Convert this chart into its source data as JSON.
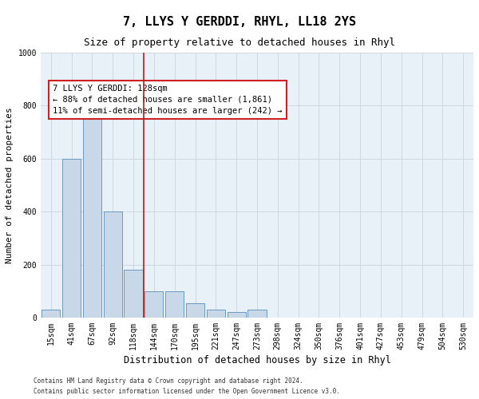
{
  "title": "7, LLYS Y GERDDI, RHYL, LL18 2YS",
  "subtitle": "Size of property relative to detached houses in Rhyl",
  "xlabel": "Distribution of detached houses by size in Rhyl",
  "ylabel": "Number of detached properties",
  "footer_line1": "Contains HM Land Registry data © Crown copyright and database right 2024.",
  "footer_line2": "Contains public sector information licensed under the Open Government Licence v3.0.",
  "bar_labels": [
    "15sqm",
    "41sqm",
    "67sqm",
    "92sqm",
    "118sqm",
    "144sqm",
    "170sqm",
    "195sqm",
    "221sqm",
    "247sqm",
    "273sqm",
    "298sqm",
    "324sqm",
    "350sqm",
    "376sqm",
    "401sqm",
    "427sqm",
    "453sqm",
    "479sqm",
    "504sqm",
    "530sqm"
  ],
  "bar_values": [
    30,
    600,
    760,
    400,
    180,
    100,
    100,
    55,
    30,
    20,
    30,
    0,
    0,
    0,
    0,
    0,
    0,
    0,
    0,
    0,
    0
  ],
  "bar_color": "#c8d8e8",
  "bar_edge_color": "#5b8db8",
  "vline_x": 4.5,
  "vline_color": "#aa2222",
  "ylim": [
    0,
    1000
  ],
  "yticks": [
    0,
    200,
    400,
    600,
    800,
    1000
  ],
  "annotation_text": "7 LLYS Y GERDDI: 128sqm\n← 88% of detached houses are smaller (1,861)\n11% of semi-detached houses are larger (242) →",
  "annotation_box_color": "#cc2222",
  "grid_color": "#c8d4e0",
  "background_color": "#ffffff",
  "title_fontsize": 11,
  "subtitle_fontsize": 9,
  "tick_fontsize": 7,
  "ylabel_fontsize": 8,
  "xlabel_fontsize": 8.5,
  "footer_fontsize": 5.5
}
